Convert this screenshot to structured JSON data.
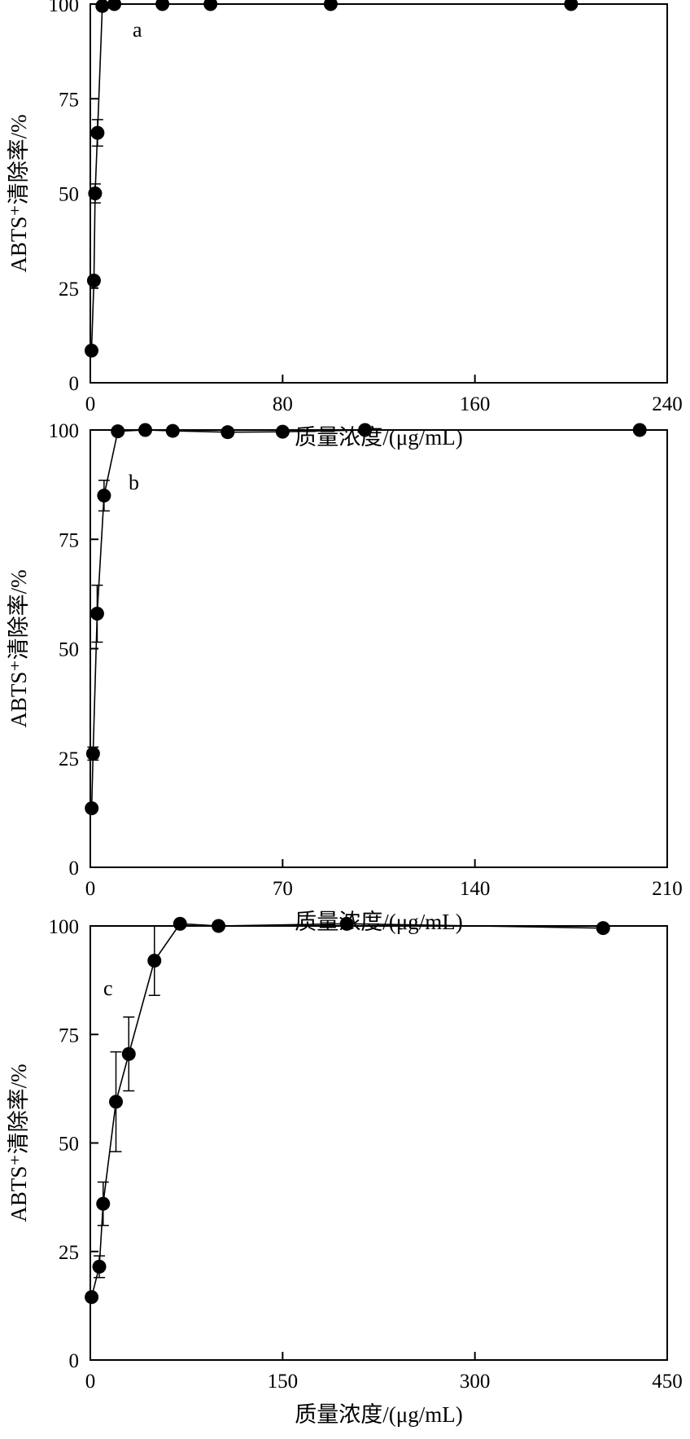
{
  "chart_data": [
    {
      "type": "scatter",
      "panel_label": "a",
      "xlabel": "质量浓度/(μg/mL)",
      "ylabel": "ABTS⁺清除率/%",
      "xlim": [
        0,
        240
      ],
      "ylim": [
        0,
        100
      ],
      "xticks": [
        0,
        80,
        160,
        240
      ],
      "yticks": [
        0,
        25,
        50,
        75,
        100
      ],
      "grid": false,
      "series": [
        {
          "x": [
            0.5,
            1.5,
            2.0,
            3.0,
            5.0,
            10,
            30,
            50,
            100,
            200
          ],
          "y": [
            8.5,
            27,
            50,
            66,
            99.5,
            100,
            100,
            100,
            100,
            100
          ],
          "err": [
            0,
            0,
            2.5,
            3.5,
            0,
            0,
            0,
            0,
            0,
            0
          ]
        }
      ]
    },
    {
      "type": "scatter",
      "panel_label": "b",
      "xlabel": "质量浓度/(μg/mL)",
      "ylabel": "ABTS⁺清除率/%",
      "xlim": [
        0,
        210
      ],
      "ylim": [
        0,
        100
      ],
      "xticks": [
        0,
        70,
        140,
        210
      ],
      "yticks": [
        0,
        25,
        50,
        75,
        100
      ],
      "grid": false,
      "series": [
        {
          "x": [
            0.5,
            1.0,
            2.5,
            5.0,
            10,
            20,
            30,
            50,
            70,
            100,
            200
          ],
          "y": [
            13.5,
            26,
            58,
            85,
            99.7,
            100,
            99.8,
            99.5,
            99.6,
            100,
            100
          ],
          "err": [
            0,
            1.5,
            6.5,
            3.5,
            0,
            0,
            0,
            0,
            0,
            0,
            0
          ]
        }
      ]
    },
    {
      "type": "scatter",
      "panel_label": "c",
      "xlabel": "质量浓度/(μg/mL)",
      "ylabel": "ABTS⁺清除率/%",
      "xlim": [
        0,
        450
      ],
      "ylim": [
        0,
        100
      ],
      "xticks": [
        0,
        150,
        300,
        450
      ],
      "yticks": [
        0,
        25,
        50,
        75,
        100
      ],
      "grid": false,
      "series": [
        {
          "x": [
            1,
            7,
            10,
            20,
            30,
            50,
            70,
            100,
            200,
            400
          ],
          "y": [
            14.5,
            21.5,
            36,
            59.5,
            70.5,
            92,
            100.5,
            100,
            100.5,
            99.5
          ],
          "err": [
            0,
            2.5,
            5,
            11.5,
            8.5,
            8,
            0,
            0,
            0,
            0
          ]
        }
      ]
    }
  ]
}
